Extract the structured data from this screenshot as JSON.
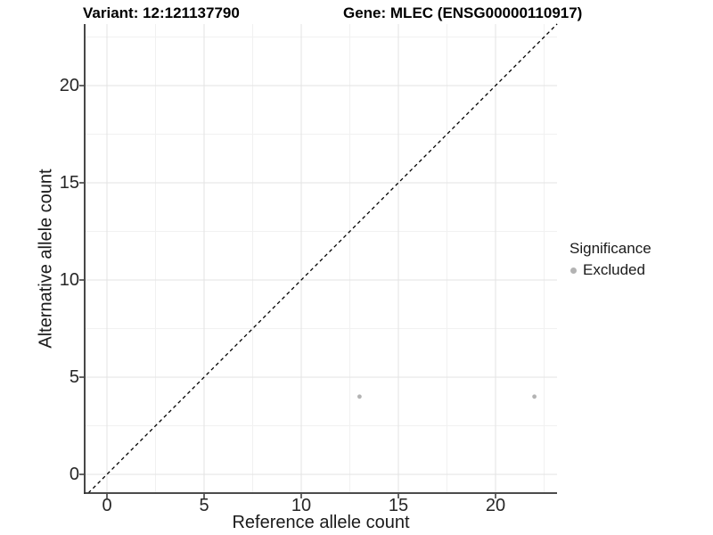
{
  "titles": {
    "variant": "Variant: 12:121137790",
    "gene": "Gene: MLEC (ENSG00000110917)"
  },
  "legend": {
    "title": "Significance",
    "items": [
      {
        "label": "Excluded",
        "color": "#b3b3b3"
      }
    ]
  },
  "chart_data": {
    "type": "scatter",
    "title": "Variant: 12:121137790   Gene: MLEC (ENSG00000110917)",
    "xlabel": "Reference allele count",
    "ylabel": "Alternative allele count",
    "x_ticks": [
      0,
      5,
      10,
      15,
      20
    ],
    "y_ticks": [
      0,
      5,
      10,
      15,
      20
    ],
    "xlim": [
      -1.15,
      23.17
    ],
    "ylim": [
      -0.96,
      23.17
    ],
    "grid": "major+minor",
    "legend_position": "right",
    "series": [
      {
        "name": "Excluded",
        "color": "#b3b3b3",
        "points": [
          {
            "x": 13,
            "y": 4
          },
          {
            "x": 22,
            "y": 4
          }
        ]
      }
    ],
    "reference_line": {
      "equation": "y = x",
      "style": "dashed",
      "color": "#000000"
    }
  },
  "colors": {
    "background": "#ffffff",
    "axis_line": "#333333",
    "tick_mark": "#333333",
    "grid_major": "#e3e3e3",
    "grid_minor": "#f1f1f1",
    "point": "#b3b3b3"
  }
}
